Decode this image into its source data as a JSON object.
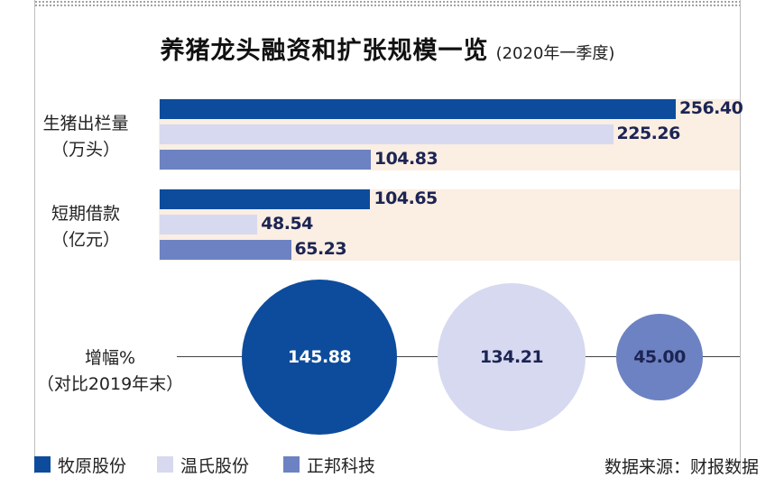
{
  "title": "养猪龙头融资和扩张规模一览",
  "subtitle": "(2020年一季度)",
  "source": "数据来源：财报数据",
  "colors": {
    "牧原股份": "#0d4c9c",
    "温氏股份": "#d6d9ef",
    "正邦科技": "#6d82c2",
    "band": "#fbeee2"
  },
  "legend": [
    {
      "name": "牧原股份",
      "color": "#0d4c9c"
    },
    {
      "name": "温氏股份",
      "color": "#d6d9ef"
    },
    {
      "name": "正邦科技",
      "color": "#6d82c2"
    }
  ],
  "chart_data": [
    {
      "type": "bar",
      "orientation": "horizontal",
      "title": "生猪出栏量（万头）",
      "label_lines": [
        "生猪出栏量",
        "（万头）"
      ],
      "categories": [
        "牧原股份",
        "温氏股份",
        "正邦科技"
      ],
      "values": [
        256.4,
        225.26,
        104.83
      ],
      "value_labels": [
        "256.40",
        "225.26",
        "104.83"
      ],
      "xlim": [
        0,
        256.4
      ]
    },
    {
      "type": "bar",
      "orientation": "horizontal",
      "title": "短期借款（亿元）",
      "label_lines": [
        "短期借款",
        "（亿元）"
      ],
      "categories": [
        "牧原股份",
        "温氏股份",
        "正邦科技"
      ],
      "values": [
        104.65,
        48.54,
        65.23
      ],
      "value_labels": [
        "104.65",
        "48.54",
        "65.23"
      ],
      "xlim": [
        0,
        256.4
      ]
    },
    {
      "type": "scatter",
      "encoding": "bubble area",
      "title": "增幅%（对比2019年末）",
      "label_lines": [
        "增幅%",
        "（对比2019年末）"
      ],
      "categories": [
        "牧原股份",
        "温氏股份",
        "正邦科技"
      ],
      "values": [
        145.88,
        134.21,
        45.0
      ],
      "value_labels": [
        "145.88",
        "134.21",
        "45.00"
      ]
    }
  ]
}
